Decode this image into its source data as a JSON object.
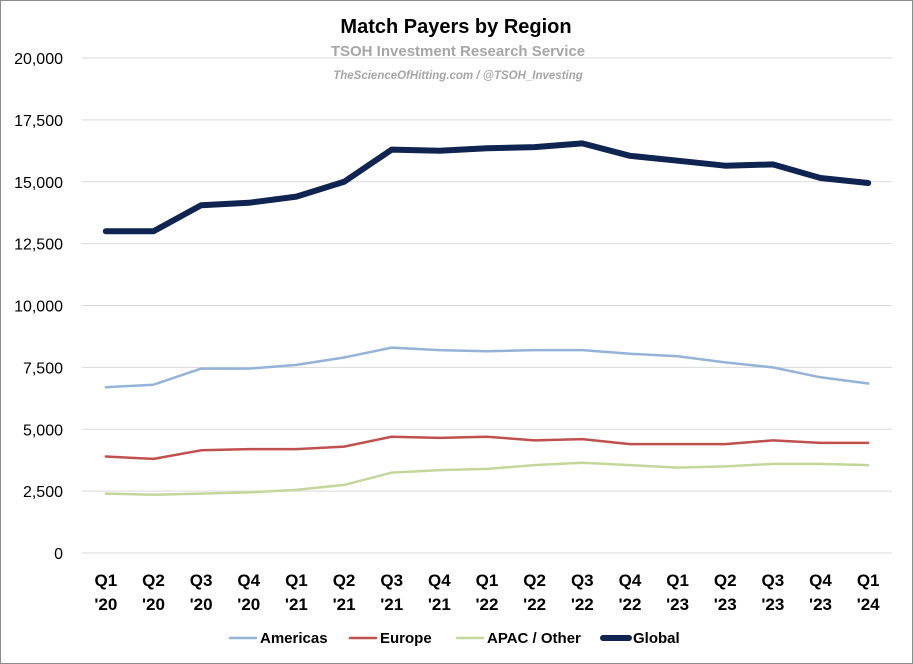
{
  "chart_data": {
    "type": "line",
    "title": "Match Payers by Region",
    "subtitle": "TSOH Investment Research Service",
    "subtitle2": "TheScienceOfHitting.com / @TSOH_Investing",
    "xlabel": "",
    "ylabel": "",
    "ylim": [
      0,
      20000
    ],
    "yticks": [
      "0",
      "2,500",
      "5,000",
      "7,500",
      "10,000",
      "12,500",
      "15,000",
      "17,500",
      "20,000"
    ],
    "categories": [
      [
        "Q1",
        "'20"
      ],
      [
        "Q2",
        "'20"
      ],
      [
        "Q3",
        "'20"
      ],
      [
        "Q4",
        "'20"
      ],
      [
        "Q1",
        "'21"
      ],
      [
        "Q2",
        "'21"
      ],
      [
        "Q3",
        "'21"
      ],
      [
        "Q4",
        "'21"
      ],
      [
        "Q1",
        "'22"
      ],
      [
        "Q2",
        "'22"
      ],
      [
        "Q3",
        "'22"
      ],
      [
        "Q4",
        "'22"
      ],
      [
        "Q1",
        "'23"
      ],
      [
        "Q2",
        "'23"
      ],
      [
        "Q3",
        "'23"
      ],
      [
        "Q4",
        "'23"
      ],
      [
        "Q1",
        "'24"
      ]
    ],
    "grid": true,
    "legend_position": "bottom",
    "series": [
      {
        "name": "Americas",
        "color": "#95b3d7",
        "values": [
          6700,
          6800,
          7450,
          7450,
          7600,
          7900,
          8300,
          8200,
          8150,
          8200,
          8200,
          8050,
          7950,
          7700,
          7500,
          7100,
          6850
        ]
      },
      {
        "name": "Europe",
        "color": "#c0504d",
        "values": [
          3900,
          3800,
          4150,
          4200,
          4200,
          4300,
          4700,
          4650,
          4700,
          4550,
          4600,
          4400,
          4400,
          4400,
          4550,
          4450,
          4450
        ]
      },
      {
        "name": "APAC / Other",
        "color": "#c4d79b",
        "values": [
          2400,
          2350,
          2400,
          2450,
          2550,
          2750,
          3250,
          3350,
          3400,
          3550,
          3650,
          3550,
          3450,
          3500,
          3600,
          3600,
          3550
        ]
      },
      {
        "name": "Global",
        "color": "#0f2451",
        "values": [
          13000,
          13000,
          14050,
          14150,
          14400,
          15000,
          16300,
          16250,
          16350,
          16400,
          16550,
          16050,
          15850,
          15650,
          15700,
          15150,
          14950
        ]
      }
    ]
  }
}
